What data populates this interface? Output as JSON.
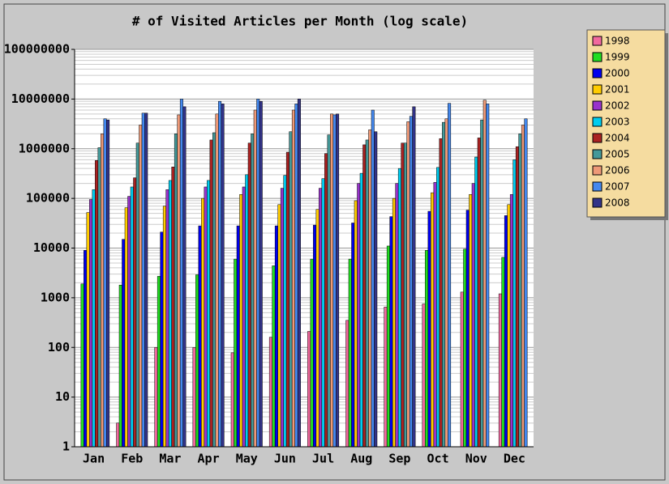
{
  "chart_data": {
    "type": "bar",
    "title": "# of Visited Articles per Month (log scale)",
    "categories": [
      "Jan",
      "Feb",
      "Mar",
      "Apr",
      "May",
      "Jun",
      "Jul",
      "Aug",
      "Sep",
      "Oct",
      "Nov",
      "Dec"
    ],
    "log_scale": true,
    "grid": true,
    "legend": "upper right",
    "ylim": [
      1,
      100000000
    ],
    "yticks": [
      1,
      10,
      100,
      1000,
      10000,
      100000,
      1000000,
      10000000,
      100000000
    ],
    "series": [
      {
        "name": "1998",
        "color": "#f2699e",
        "values": [
          null,
          3,
          100,
          100,
          78,
          160,
          210,
          350,
          650,
          750,
          1300,
          1200
        ]
      },
      {
        "name": "1999",
        "color": "#22dd22",
        "values": [
          1900,
          1800,
          2700,
          2900,
          6000,
          4400,
          6000,
          6000,
          11000,
          9000,
          9500,
          6500
        ]
      },
      {
        "name": "2000",
        "color": "#0000ee",
        "values": [
          9000,
          15000,
          21000,
          28000,
          28000,
          28000,
          29000,
          32000,
          43000,
          55000,
          58000,
          45000
        ]
      },
      {
        "name": "2001",
        "color": "#ffcc00",
        "values": [
          52000,
          65000,
          70000,
          100000,
          120000,
          75000,
          60000,
          90000,
          100000,
          130000,
          120000,
          75000
        ]
      },
      {
        "name": "2002",
        "color": "#9933cc",
        "values": [
          95000,
          110000,
          150000,
          170000,
          170000,
          160000,
          160000,
          200000,
          200000,
          210000,
          200000,
          120000
        ]
      },
      {
        "name": "2003",
        "color": "#00ccee",
        "values": [
          150000,
          170000,
          230000,
          230000,
          300000,
          290000,
          250000,
          320000,
          400000,
          420000,
          680000,
          600000
        ]
      },
      {
        "name": "2004",
        "color": "#aa2222",
        "values": [
          580000,
          260000,
          430000,
          1500000,
          1300000,
          850000,
          800000,
          1200000,
          1300000,
          1600000,
          1650000,
          1100000
        ]
      },
      {
        "name": "2005",
        "color": "#449999",
        "values": [
          1050000,
          1300000,
          2000000,
          2100000,
          2000000,
          2200000,
          1900000,
          1500000,
          1300000,
          3400000,
          3800000,
          2000000
        ]
      },
      {
        "name": "2006",
        "color": "#ee9977",
        "values": [
          2000000,
          3000000,
          4800000,
          5000000,
          6000000,
          6000000,
          5000000,
          2400000,
          3500000,
          4000000,
          9500000,
          3000000
        ]
      },
      {
        "name": "2007",
        "color": "#4488ee",
        "values": [
          4000000,
          5200000,
          10000000,
          9000000,
          10000000,
          8000000,
          4800000,
          6000000,
          4500000,
          8200000,
          8000000,
          4000000
        ]
      },
      {
        "name": "2008",
        "color": "#333388",
        "values": [
          3800000,
          5200000,
          7000000,
          8000000,
          9000000,
          10000000,
          5000000,
          2200000,
          7000000,
          null,
          null,
          null
        ]
      }
    ]
  }
}
